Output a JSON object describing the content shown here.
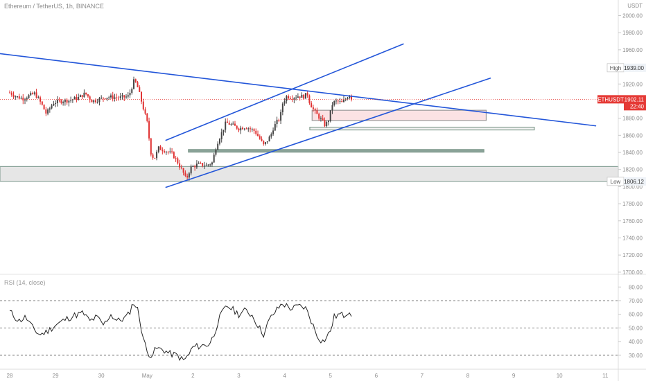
{
  "header": {
    "title": "Ethereum / TetherUS, 1h, BINANCE",
    "rsi_label": "RSI (14, close)"
  },
  "chart_data": {
    "type": "candlestick",
    "symbol": "ETHUSDT",
    "exchange": "BINANCE",
    "interval": "1h",
    "currency_label": "USDT",
    "price_ticks": [
      2000,
      1980,
      1960,
      1940,
      1920,
      1900,
      1880,
      1860,
      1840,
      1820,
      1800,
      1780,
      1760,
      1740,
      1720,
      1700
    ],
    "price_tick_labels": [
      "2000.00",
      "1980.00",
      "1960.00",
      "1940.00",
      "1920.00",
      "1900.00",
      "1880.00",
      "1860.00",
      "1840.00",
      "1820.00",
      "1800.00",
      "1780.00",
      "1760.00",
      "1740.00",
      "1720.00",
      "1700.00"
    ],
    "ylim": [
      1687,
      2015
    ],
    "x_ticks": [
      {
        "day": 0,
        "label": "28"
      },
      {
        "day": 1,
        "label": "29"
      },
      {
        "day": 2,
        "label": "30"
      },
      {
        "day": 3,
        "label": "May"
      },
      {
        "day": 4,
        "label": "2"
      },
      {
        "day": 5,
        "label": "3"
      },
      {
        "day": 6,
        "label": "4"
      },
      {
        "day": 7,
        "label": "5"
      },
      {
        "day": 8,
        "label": "6"
      },
      {
        "day": 9,
        "label": "7"
      },
      {
        "day": 10,
        "label": "8"
      },
      {
        "day": 11,
        "label": "9"
      },
      {
        "day": 12,
        "label": "10"
      },
      {
        "day": 13,
        "label": "11"
      }
    ],
    "last_price": {
      "label": "ETHUSDT",
      "value": "1902.11",
      "countdown": "22:40",
      "price": 1902.11
    },
    "high": {
      "label": "High",
      "value": "1939.00",
      "price": 1939.0
    },
    "low": {
      "label": "Low",
      "value": "1806.12",
      "price": 1806.12
    },
    "close_path": [
      [
        0.0,
        1910
      ],
      [
        0.15,
        1905
      ],
      [
        0.3,
        1903
      ],
      [
        0.45,
        1907
      ],
      [
        0.55,
        1909
      ],
      [
        0.7,
        1896
      ],
      [
        0.8,
        1885
      ],
      [
        0.95,
        1898
      ],
      [
        1.1,
        1900
      ],
      [
        1.3,
        1901
      ],
      [
        1.5,
        1904
      ],
      [
        1.65,
        1909
      ],
      [
        1.8,
        1900
      ],
      [
        1.95,
        1902
      ],
      [
        2.1,
        1905
      ],
      [
        2.4,
        1904
      ],
      [
        2.55,
        1905
      ],
      [
        2.6,
        1906
      ],
      [
        2.72,
        1925
      ],
      [
        2.8,
        1915
      ],
      [
        2.9,
        1895
      ],
      [
        3.0,
        1875
      ],
      [
        3.08,
        1840
      ],
      [
        3.15,
        1832
      ],
      [
        3.25,
        1845
      ],
      [
        3.4,
        1842
      ],
      [
        3.55,
        1838
      ],
      [
        3.65,
        1830
      ],
      [
        3.8,
        1815
      ],
      [
        3.85,
        1808
      ],
      [
        3.95,
        1822
      ],
      [
        4.1,
        1826
      ],
      [
        4.3,
        1825
      ],
      [
        4.42,
        1828
      ],
      [
        4.52,
        1850
      ],
      [
        4.62,
        1862
      ],
      [
        4.72,
        1875
      ],
      [
        4.85,
        1872
      ],
      [
        5.0,
        1868
      ],
      [
        5.15,
        1870
      ],
      [
        5.35,
        1865
      ],
      [
        5.55,
        1848
      ],
      [
        5.7,
        1860
      ],
      [
        5.75,
        1868
      ],
      [
        5.82,
        1875
      ],
      [
        5.9,
        1880
      ],
      [
        5.96,
        1898
      ],
      [
        6.05,
        1906
      ],
      [
        6.15,
        1904
      ],
      [
        6.3,
        1906
      ],
      [
        6.45,
        1905
      ],
      [
        6.48,
        1912
      ],
      [
        6.55,
        1898
      ],
      [
        6.65,
        1888
      ],
      [
        6.8,
        1878
      ],
      [
        6.88,
        1872
      ],
      [
        6.95,
        1876
      ],
      [
        7.05,
        1898
      ],
      [
        7.15,
        1900
      ],
      [
        7.25,
        1898
      ],
      [
        7.33,
        1902
      ],
      [
        7.42,
        1908
      ],
      [
        7.47,
        1902.11
      ]
    ],
    "trendlines": [
      {
        "name": "descending-resistance",
        "color": "#2356d9",
        "from": [
          -0.45,
          1957
        ],
        "to": [
          12.8,
          1871
        ]
      },
      {
        "name": "channel-upper",
        "color": "#2356d9",
        "from": [
          3.4,
          1854
        ],
        "to": [
          8.6,
          1967
        ]
      },
      {
        "name": "channel-lower",
        "color": "#2356d9",
        "from": [
          3.4,
          1799
        ],
        "to": [
          10.5,
          1927
        ]
      }
    ],
    "zones": [
      {
        "name": "support-zone-lower",
        "day_from": -0.45,
        "day_to": 13.5,
        "top": 1823.5,
        "bottom": 1806.2,
        "fill": "#e6e6e6",
        "stroke": "#8aa399"
      },
      {
        "name": "supply-zone-pink",
        "day_from": 6.6,
        "day_to": 10.4,
        "top": 1889.3,
        "bottom": 1877.3,
        "fill": "#fbe2e4",
        "stroke": "#999999"
      },
      {
        "name": "support-band-1868",
        "day_from": 6.55,
        "day_to": 11.45,
        "top": 1869.5,
        "bottom": 1866.3,
        "fill": "#f5f5f5",
        "stroke": "#7f9a8c"
      },
      {
        "name": "support-band-1842",
        "day_from": 3.9,
        "day_to": 10.35,
        "top": 1843.4,
        "bottom": 1840.3,
        "fill": "#8aa399",
        "stroke": "#7f9a8c"
      }
    ],
    "rsi": {
      "label": "RSI (14, close)",
      "ylim": [
        20,
        83
      ],
      "ticks": [
        80,
        70,
        60,
        50,
        40,
        30
      ],
      "tick_labels": [
        "80.00",
        "70.00",
        "60.00",
        "50.00",
        "40.00",
        "30.00"
      ],
      "bands": [
        70,
        50,
        30
      ],
      "path": [
        [
          0.0,
          62
        ],
        [
          0.2,
          55
        ],
        [
          0.35,
          58
        ],
        [
          0.5,
          50
        ],
        [
          0.65,
          45
        ],
        [
          0.8,
          47
        ],
        [
          1.0,
          52
        ],
        [
          1.2,
          56
        ],
        [
          1.4,
          59
        ],
        [
          1.6,
          61
        ],
        [
          1.75,
          55
        ],
        [
          1.9,
          58
        ],
        [
          2.05,
          52
        ],
        [
          2.2,
          60
        ],
        [
          2.35,
          55
        ],
        [
          2.5,
          57
        ],
        [
          2.6,
          60
        ],
        [
          2.7,
          69
        ],
        [
          2.8,
          63
        ],
        [
          2.9,
          45
        ],
        [
          3.0,
          32
        ],
        [
          3.1,
          30
        ],
        [
          3.2,
          35
        ],
        [
          3.35,
          34
        ],
        [
          3.5,
          31
        ],
        [
          3.65,
          30
        ],
        [
          3.8,
          26
        ],
        [
          3.9,
          30
        ],
        [
          4.0,
          36
        ],
        [
          4.2,
          37
        ],
        [
          4.35,
          38
        ],
        [
          4.45,
          44
        ],
        [
          4.55,
          55
        ],
        [
          4.65,
          62
        ],
        [
          4.75,
          66
        ],
        [
          4.85,
          64
        ],
        [
          5.0,
          60
        ],
        [
          5.15,
          63
        ],
        [
          5.3,
          59
        ],
        [
          5.45,
          50
        ],
        [
          5.55,
          45
        ],
        [
          5.65,
          55
        ],
        [
          5.75,
          60
        ],
        [
          5.85,
          64
        ],
        [
          5.95,
          68
        ],
        [
          6.05,
          66
        ],
        [
          6.15,
          64
        ],
        [
          6.3,
          66
        ],
        [
          6.45,
          65
        ],
        [
          6.55,
          58
        ],
        [
          6.7,
          45
        ],
        [
          6.82,
          40
        ],
        [
          6.9,
          42
        ],
        [
          7.0,
          48
        ],
        [
          7.08,
          58
        ],
        [
          7.2,
          60
        ],
        [
          7.3,
          59
        ],
        [
          7.4,
          63
        ],
        [
          7.47,
          60
        ]
      ]
    },
    "colors": {
      "up": "#444444",
      "down": "#e03131",
      "trendline": "#2356d9",
      "last_price": "#e53935"
    }
  }
}
